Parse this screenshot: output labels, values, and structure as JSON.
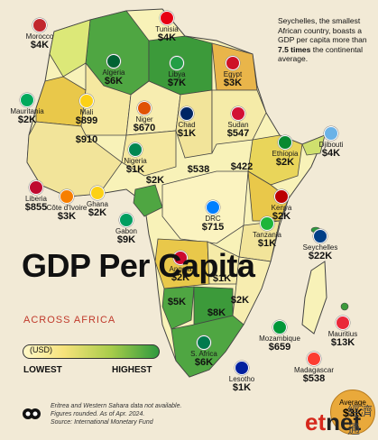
{
  "title": "GDP Per Capita",
  "subtitle": "ACROSS AFRICA",
  "legend": {
    "unit": "(USD)",
    "low": "LOWEST",
    "high": "HIGHEST"
  },
  "note": {
    "pre": "Seychelles, the smallest African country, boasts a GDP per capita more than ",
    "bold": "7.5 times",
    "post": " the continental average."
  },
  "footnote": [
    "Eritrea and Western Sahara data not available.",
    "Figures rounded. As of Apr. 2024.",
    "Source: International Monetary Fund"
  ],
  "average": {
    "label": "Average",
    "value": "$3K"
  },
  "watermark": {
    "a": "et",
    "b": "net",
    "cn": "經濟通"
  },
  "colors": {
    "lowest": "#fff8c8",
    "low": "#f6e27a",
    "mid": "#a7cc4a",
    "highest": "#2f9a3e",
    "average_badge": "#e9a93b",
    "accent": "#d6281c",
    "sea": "#f2ead6"
  },
  "countries": [
    {
      "name": "Morocco",
      "value": "$4K",
      "flag": "#c1272d"
    },
    {
      "name": "Tunisia",
      "value": "$4K",
      "flag": "#e70013"
    },
    {
      "name": "Algeria",
      "value": "$6K",
      "flag": "#006233"
    },
    {
      "name": "Libya",
      "value": "$7K",
      "flag": "#239e46"
    },
    {
      "name": "Egypt",
      "value": "$3K",
      "flag": "#ce1126"
    },
    {
      "name": "Mauritania",
      "value": "$2K",
      "flag": "#00a95c"
    },
    {
      "name": "Mali",
      "value": "$899",
      "flag": "#fcd116"
    },
    {
      "name": "Niger",
      "value": "$670",
      "flag": "#e05206"
    },
    {
      "name": "Chad",
      "value": "$1K",
      "flag": "#002664"
    },
    {
      "name": "Sudan",
      "value": "$547",
      "flag": "#d21034"
    },
    {
      "name": "Djibouti",
      "value": "$4K",
      "flag": "#6ab2e7"
    },
    {
      "name": "",
      "value": "$910",
      "flag": ""
    },
    {
      "name": "Nigeria",
      "value": "$1K",
      "flag": "#008751"
    },
    {
      "name": "Ethiopia",
      "value": "$2K",
      "flag": "#078930"
    },
    {
      "name": "",
      "value": "$538",
      "flag": ""
    },
    {
      "name": "",
      "value": "$422",
      "flag": ""
    },
    {
      "name": "",
      "value": "$2K",
      "flag": ""
    },
    {
      "name": "Liberia",
      "value": "$855",
      "flag": "#bf0a30"
    },
    {
      "name": "Côte d'Ivoire",
      "value": "$3K",
      "flag": "#f77f00"
    },
    {
      "name": "Ghana",
      "value": "$2K",
      "flag": "#fcd116"
    },
    {
      "name": "Gabon",
      "value": "$9K",
      "flag": "#009e60"
    },
    {
      "name": "Kenya",
      "value": "$2K",
      "flag": "#bb0000"
    },
    {
      "name": "DRC",
      "value": "$715",
      "flag": "#007fff"
    },
    {
      "name": "Tanzania",
      "value": "$1K",
      "flag": "#1eb53a"
    },
    {
      "name": "Seychelles",
      "value": "$22K",
      "flag": "#003f87"
    },
    {
      "name": "Angola",
      "value": "$2K",
      "flag": "#cc092f"
    },
    {
      "name": "",
      "value": "$1K",
      "flag": ""
    },
    {
      "name": "",
      "value": "$2K",
      "flag": ""
    },
    {
      "name": "",
      "value": "$5K",
      "flag": ""
    },
    {
      "name": "",
      "value": "$8K",
      "flag": ""
    },
    {
      "name": "Mozambique",
      "value": "$659",
      "flag": "#009739"
    },
    {
      "name": "Mauritius",
      "value": "$13K",
      "flag": "#ea2839"
    },
    {
      "name": "Madagascar",
      "value": "$538",
      "flag": "#fc3d32"
    },
    {
      "name": "S. Africa",
      "value": "$6K",
      "flag": "#007a4d"
    },
    {
      "name": "Lesotho",
      "value": "$1K",
      "flag": "#00209f"
    }
  ]
}
